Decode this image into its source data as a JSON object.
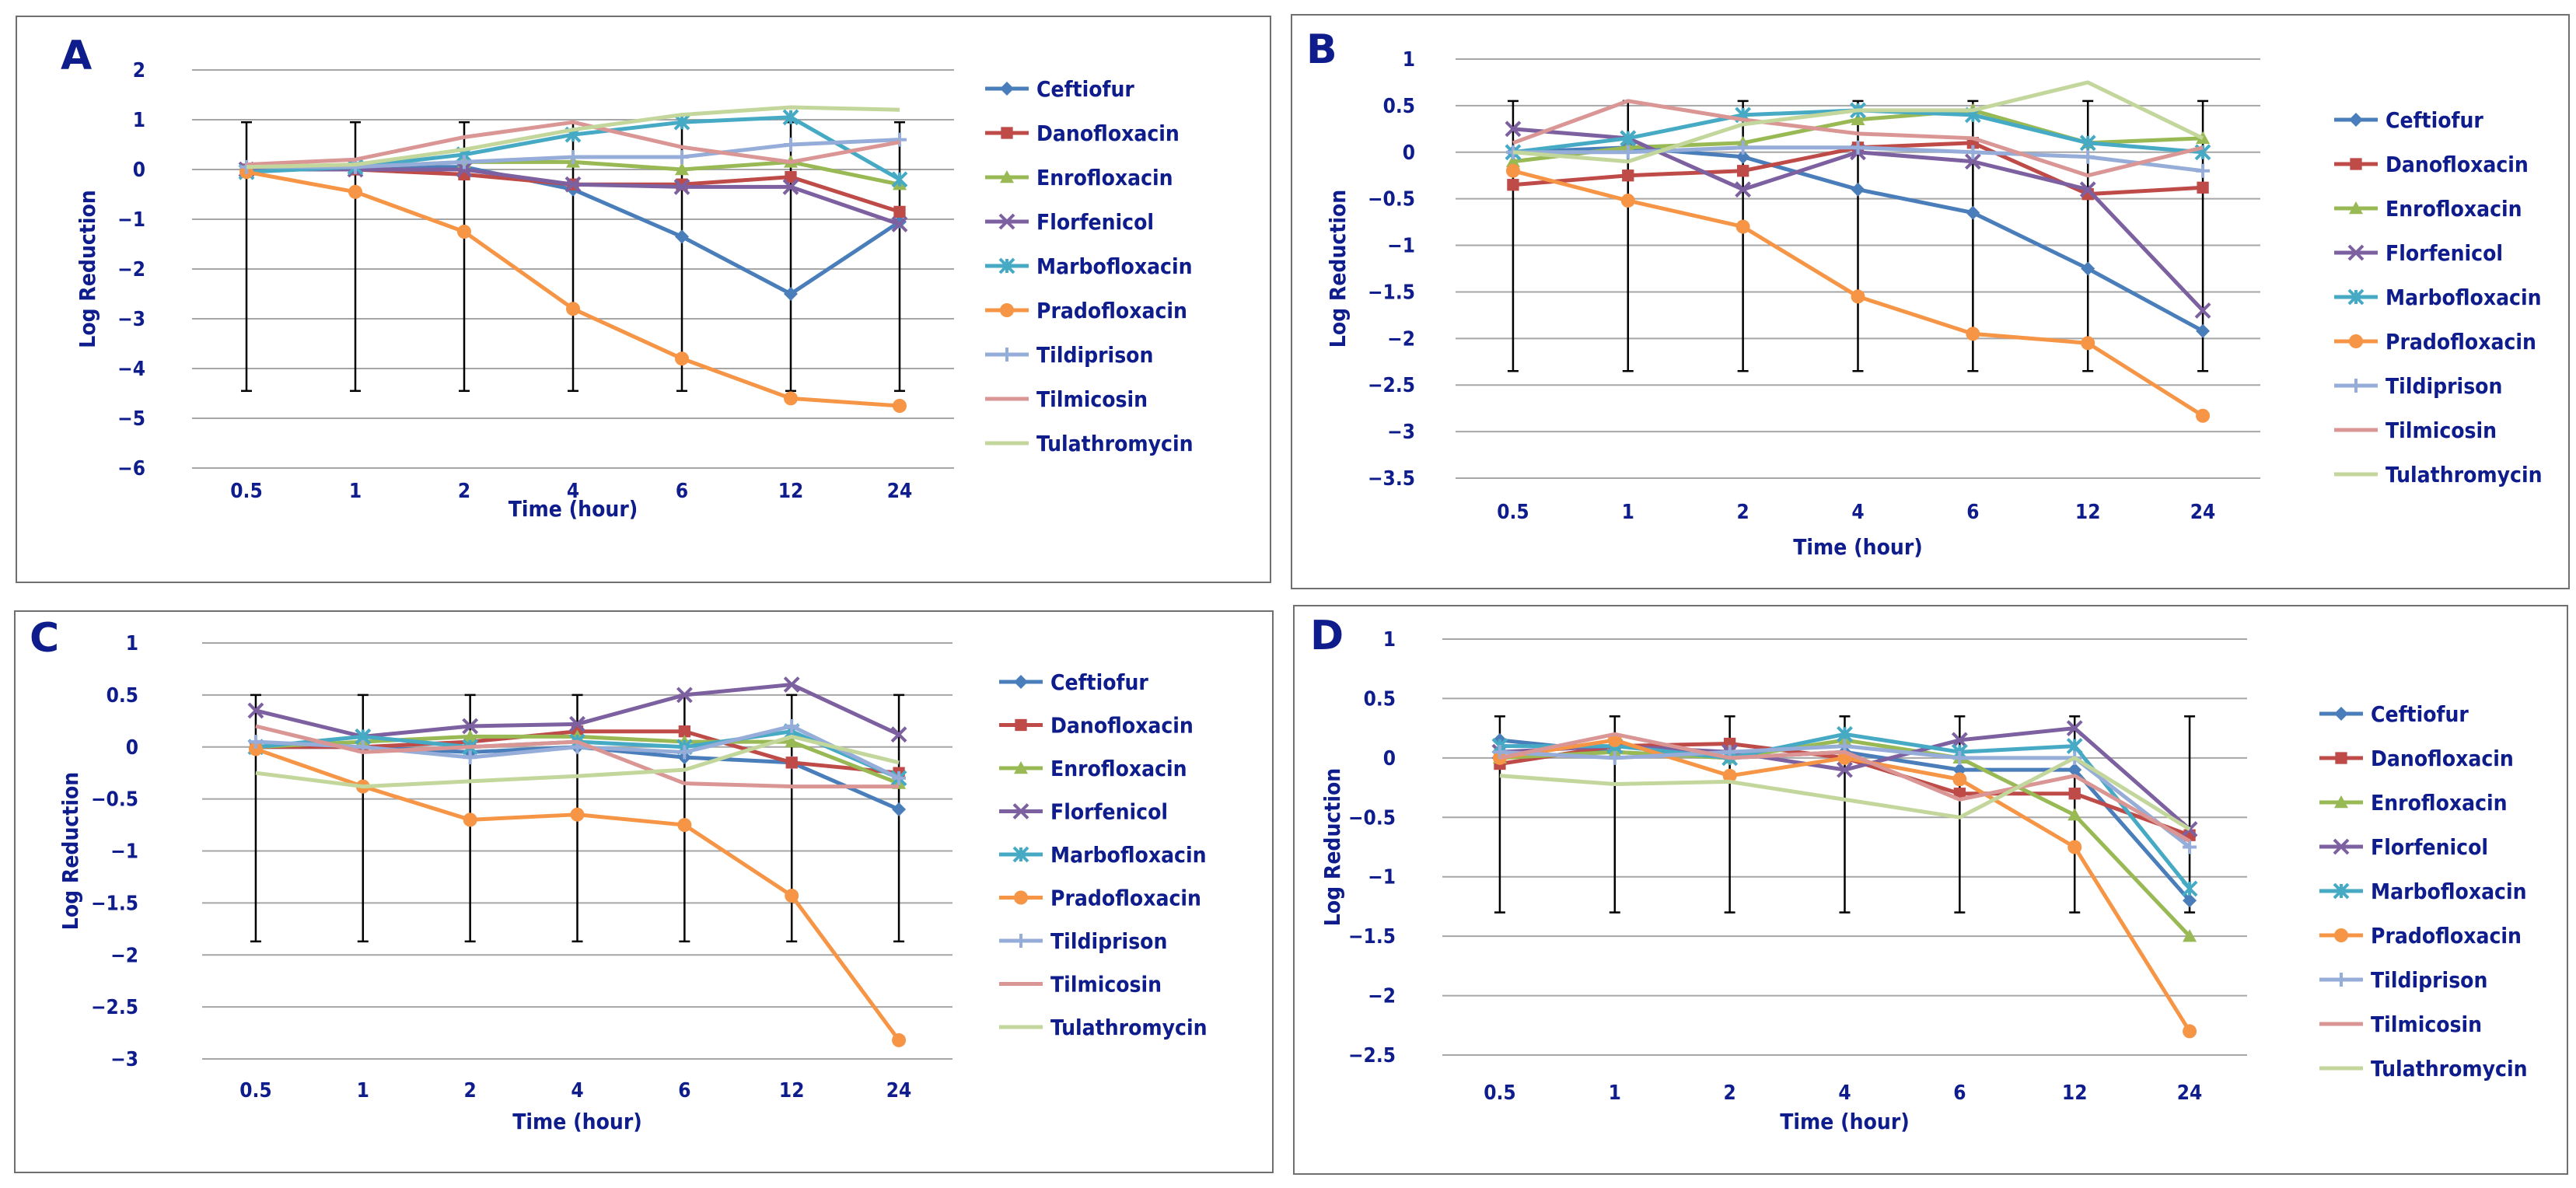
{
  "colors": {
    "Ceftiofur": "#4a7ebb",
    "Danofloxacin": "#be4b48",
    "Enrofloxacin": "#98b954",
    "Florfenicol": "#7d60a0",
    "Marbofloxacin": "#46aac5",
    "Pradofloxacin": "#f69545",
    "Tildiprison": "#95add8",
    "Tilmicosin": "#da9694",
    "Tulathromycin": "#c3d69b",
    "axis_text": "#0e1c8c",
    "grid": "#a6a6a6",
    "errorbar": "#000000"
  },
  "chart_data": [
    {
      "panel": "A",
      "type": "line",
      "categories": [
        "0.5",
        "1",
        "2",
        "4",
        "6",
        "12",
        "24"
      ],
      "xlabel": "Time (hour)",
      "ylabel": "Log Reduction",
      "ylim": [
        -6,
        2
      ],
      "yticks": [
        -6,
        -5,
        -4,
        -3,
        -2,
        -1,
        0,
        1,
        2
      ],
      "ytick_labels": [
        "−6",
        "−5",
        "−4",
        "−3",
        "−2",
        "−1",
        "0",
        "1",
        "2"
      ],
      "error_bar": {
        "upper": 0.95,
        "lower": -4.45
      },
      "series": [
        {
          "name": "Ceftiofur",
          "values": [
            0.0,
            0.05,
            0.05,
            -0.4,
            -1.35,
            -2.5,
            -1.05
          ]
        },
        {
          "name": "Danofloxacin",
          "values": [
            0.0,
            0.0,
            -0.1,
            -0.3,
            -0.3,
            -0.15,
            -0.85
          ]
        },
        {
          "name": "Enrofloxacin",
          "values": [
            0.0,
            0.05,
            0.15,
            0.15,
            0.0,
            0.15,
            -0.3
          ]
        },
        {
          "name": "Florfenicol",
          "values": [
            0.0,
            0.0,
            0.0,
            -0.3,
            -0.35,
            -0.35,
            -1.1
          ]
        },
        {
          "name": "Marbofloxacin",
          "values": [
            -0.05,
            0.05,
            0.3,
            0.7,
            0.95,
            1.05,
            -0.2
          ]
        },
        {
          "name": "Pradofloxacin",
          "values": [
            -0.05,
            -0.45,
            -1.25,
            -2.8,
            -3.8,
            -4.6,
            -4.75
          ]
        },
        {
          "name": "Tildiprison",
          "values": [
            0.05,
            0.05,
            0.15,
            0.25,
            0.25,
            0.5,
            0.6
          ]
        },
        {
          "name": "Tilmicosin",
          "values": [
            0.1,
            0.2,
            0.65,
            0.95,
            0.45,
            0.15,
            0.55
          ]
        },
        {
          "name": "Tulathromycin",
          "values": [
            0.05,
            0.1,
            0.4,
            0.8,
            1.1,
            1.25,
            1.2
          ]
        }
      ]
    },
    {
      "panel": "B",
      "type": "line",
      "categories": [
        "0.5",
        "1",
        "2",
        "4",
        "6",
        "12",
        "24"
      ],
      "xlabel": "Time (hour)",
      "ylabel": "Log Reduction",
      "ylim": [
        -3.5,
        1
      ],
      "yticks": [
        -3.5,
        -3,
        -2.5,
        -2,
        -1.5,
        -1,
        -0.5,
        0,
        0.5,
        1
      ],
      "ytick_labels": [
        "−3.5",
        "−3",
        "−2.5",
        "−2",
        "−1.5",
        "−1",
        "−0.5",
        "0",
        "0.5",
        "1"
      ],
      "error_bar": {
        "upper": 0.55,
        "lower": -2.35
      },
      "series": [
        {
          "name": "Ceftiofur",
          "values": [
            0.0,
            0.05,
            -0.05,
            -0.4,
            -0.65,
            -1.25,
            -1.92
          ]
        },
        {
          "name": "Danofloxacin",
          "values": [
            -0.35,
            -0.25,
            -0.2,
            0.05,
            0.1,
            -0.45,
            -0.38
          ]
        },
        {
          "name": "Enrofloxacin",
          "values": [
            -0.1,
            0.05,
            0.1,
            0.35,
            0.45,
            0.1,
            0.15
          ]
        },
        {
          "name": "Florfenicol",
          "values": [
            0.25,
            0.15,
            -0.4,
            0.0,
            -0.1,
            -0.4,
            -1.7
          ]
        },
        {
          "name": "Marbofloxacin",
          "values": [
            0.0,
            0.15,
            0.4,
            0.45,
            0.4,
            0.1,
            0.0
          ]
        },
        {
          "name": "Pradofloxacin",
          "values": [
            -0.2,
            -0.52,
            -0.8,
            -1.55,
            -1.95,
            -2.05,
            -2.83
          ]
        },
        {
          "name": "Tildiprison",
          "values": [
            0.0,
            0.0,
            0.05,
            0.05,
            0.0,
            -0.05,
            -0.2
          ]
        },
        {
          "name": "Tilmicosin",
          "values": [
            0.1,
            0.55,
            0.35,
            0.2,
            0.15,
            -0.25,
            0.05
          ]
        },
        {
          "name": "Tulathromycin",
          "values": [
            0.0,
            -0.1,
            0.3,
            0.45,
            0.45,
            0.75,
            0.15
          ]
        }
      ]
    },
    {
      "panel": "C",
      "type": "line",
      "categories": [
        "0.5",
        "1",
        "2",
        "4",
        "6",
        "12",
        "24"
      ],
      "xlabel": "Time (hour)",
      "ylabel": "Log Reduction",
      "ylim": [
        -3,
        1
      ],
      "yticks": [
        -3,
        -2.5,
        -2,
        -1.5,
        -1,
        -0.5,
        0,
        0.5,
        1
      ],
      "ytick_labels": [
        "−3",
        "−2.5",
        "−2",
        "−1.5",
        "−1",
        "−0.5",
        "0",
        "0.5",
        "1"
      ],
      "error_bar": {
        "upper": 0.5,
        "lower": -1.87
      },
      "series": [
        {
          "name": "Ceftiofur",
          "values": [
            0.0,
            0.0,
            -0.05,
            0.0,
            -0.1,
            -0.15,
            -0.6
          ]
        },
        {
          "name": "Danofloxacin",
          "values": [
            0.0,
            0.0,
            0.05,
            0.15,
            0.15,
            -0.15,
            -0.25
          ]
        },
        {
          "name": "Enrofloxacin",
          "values": [
            0.0,
            0.05,
            0.1,
            0.1,
            0.05,
            0.05,
            -0.35
          ]
        },
        {
          "name": "Florfenicol",
          "values": [
            0.35,
            0.1,
            0.2,
            0.22,
            0.5,
            0.6,
            0.12
          ]
        },
        {
          "name": "Marbofloxacin",
          "values": [
            0.0,
            0.1,
            0.0,
            0.05,
            0.0,
            0.15,
            -0.3
          ]
        },
        {
          "name": "Pradofloxacin",
          "values": [
            -0.02,
            -0.38,
            -0.7,
            -0.65,
            -0.75,
            -1.43,
            -2.82
          ]
        },
        {
          "name": "Tildiprison",
          "values": [
            0.05,
            0.0,
            -0.1,
            0.0,
            -0.05,
            0.2,
            -0.3
          ]
        },
        {
          "name": "Tilmicosin",
          "values": [
            0.2,
            -0.05,
            0.0,
            0.05,
            -0.35,
            -0.38,
            -0.38
          ]
        },
        {
          "name": "Tulathromycin",
          "values": [
            -0.25,
            -0.38,
            -0.33,
            -0.28,
            -0.22,
            0.1,
            -0.15
          ]
        }
      ]
    },
    {
      "panel": "D",
      "type": "line",
      "categories": [
        "0.5",
        "1",
        "2",
        "4",
        "6",
        "12",
        "24"
      ],
      "xlabel": "Time (hour)",
      "ylabel": "Log Reduction",
      "ylim": [
        -2.5,
        1
      ],
      "yticks": [
        -2.5,
        -2,
        -1.5,
        -1,
        -0.5,
        0,
        0.5,
        1
      ],
      "ytick_labels": [
        "−2.5",
        "−2",
        "−1.5",
        "−1",
        "−0.5",
        "0",
        "0.5",
        "1"
      ],
      "error_bar": {
        "upper": 0.35,
        "lower": -1.3
      },
      "series": [
        {
          "name": "Ceftiofur",
          "values": [
            0.15,
            0.05,
            0.0,
            0.05,
            -0.1,
            -0.1,
            -1.2
          ]
        },
        {
          "name": "Danofloxacin",
          "values": [
            -0.05,
            0.1,
            0.12,
            0.0,
            -0.3,
            -0.3,
            -0.65
          ]
        },
        {
          "name": "Enrofloxacin",
          "values": [
            0.0,
            0.05,
            0.0,
            0.15,
            0.0,
            -0.48,
            -1.5
          ]
        },
        {
          "name": "Florfenicol",
          "values": [
            0.05,
            0.1,
            0.05,
            -0.1,
            0.15,
            0.25,
            -0.6
          ]
        },
        {
          "name": "Marbofloxacin",
          "values": [
            0.1,
            0.1,
            0.0,
            0.2,
            0.05,
            0.1,
            -1.1
          ]
        },
        {
          "name": "Pradofloxacin",
          "values": [
            0.0,
            0.15,
            -0.15,
            0.0,
            -0.18,
            -0.75,
            -2.3
          ]
        },
        {
          "name": "Tildiprison",
          "values": [
            0.05,
            0.0,
            0.05,
            0.1,
            0.0,
            0.0,
            -0.75
          ]
        },
        {
          "name": "Tilmicosin",
          "values": [
            0.0,
            0.2,
            0.0,
            0.05,
            -0.35,
            -0.15,
            -0.7
          ]
        },
        {
          "name": "Tulathromycin",
          "values": [
            -0.15,
            -0.22,
            -0.2,
            -0.35,
            -0.5,
            0.0,
            -0.6
          ]
        }
      ]
    }
  ]
}
